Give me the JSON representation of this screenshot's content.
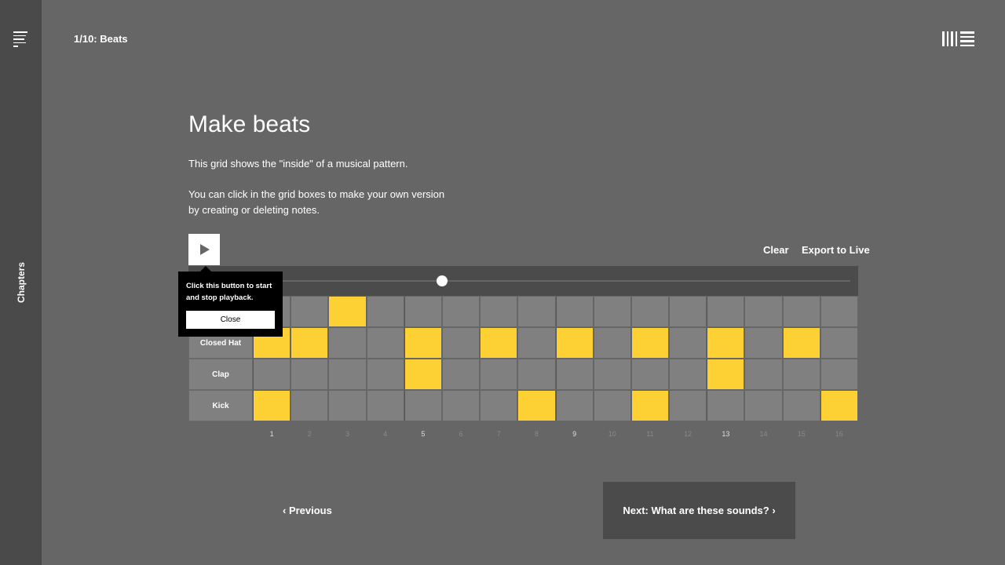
{
  "sidebar": {
    "label": "Chapters",
    "menu_icon": "menu-icon"
  },
  "header": {
    "breadcrumb": "1/10: Beats",
    "logo": "ableton-logo"
  },
  "main": {
    "title": "Make beats",
    "para1": "This grid shows the \"inside\" of a musical pattern.",
    "para2": "You can click in the grid boxes to make your own version by creating or deleting notes.",
    "clear_label": "Clear",
    "export_label": "Export to Live",
    "slider_value": 0.3
  },
  "sequencer": {
    "steps": [
      "1",
      "2",
      "3",
      "4",
      "5",
      "6",
      "7",
      "8",
      "9",
      "10",
      "11",
      "12",
      "13",
      "14",
      "15",
      "16"
    ],
    "active_color": "#fdd034",
    "rows": [
      {
        "label": "",
        "on": [
          3
        ]
      },
      {
        "label": "Closed Hat",
        "on": [
          1,
          2,
          5,
          7,
          9,
          11,
          13,
          15
        ]
      },
      {
        "label": "Clap",
        "on": [
          5,
          13
        ]
      },
      {
        "label": "Kick",
        "on": [
          1,
          8,
          11,
          16
        ]
      }
    ]
  },
  "tooltip": {
    "text": "Click this button to start and stop playback.",
    "close_label": "Close"
  },
  "nav": {
    "previous": "‹ Previous",
    "next": "Next: What are these sounds? ›"
  }
}
